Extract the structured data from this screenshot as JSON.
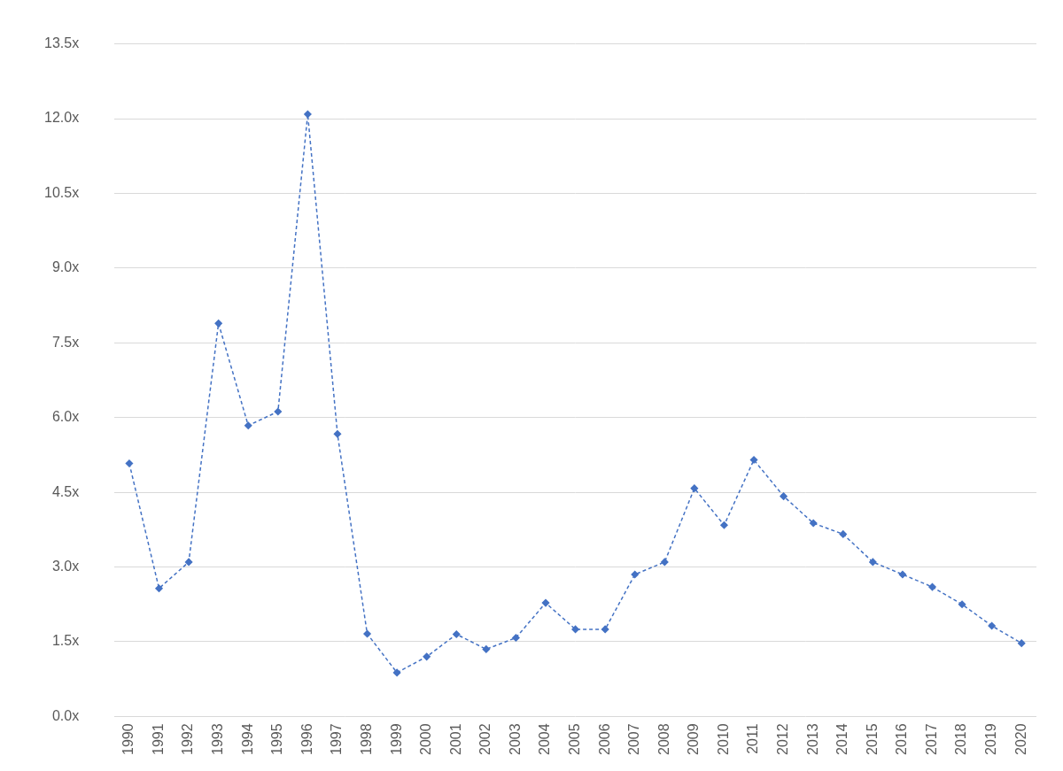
{
  "chart_data": {
    "type": "line",
    "categories": [
      "1990",
      "1991",
      "1992",
      "1993",
      "1994",
      "1995",
      "1996",
      "1997",
      "1998",
      "1999",
      "2000",
      "2001",
      "2002",
      "2003",
      "2004",
      "2005",
      "2006",
      "2007",
      "2008",
      "2009",
      "2010",
      "2011",
      "2012",
      "2013",
      "2014",
      "2015",
      "2016",
      "2017",
      "2018",
      "2019",
      "2020"
    ],
    "values": [
      5.08,
      2.57,
      3.1,
      7.89,
      5.84,
      6.12,
      12.09,
      5.67,
      1.66,
      0.88,
      1.2,
      1.65,
      1.35,
      1.58,
      2.28,
      1.75,
      1.75,
      2.85,
      3.1,
      4.58,
      3.84,
      5.15,
      4.42,
      3.88,
      3.66,
      3.1,
      2.85,
      2.6,
      2.25,
      1.82,
      1.47
    ],
    "color": "#4472c4",
    "marker": "diamond",
    "line_style": "dashed",
    "ylim": [
      0,
      13.5
    ],
    "yticks": [
      {
        "value": 0,
        "label": "0.0x"
      },
      {
        "value": 1.5,
        "label": "1.5x"
      },
      {
        "value": 3,
        "label": "3.0x"
      },
      {
        "value": 4.5,
        "label": "4.5x"
      },
      {
        "value": 6,
        "label": "6.0x"
      },
      {
        "value": 7.5,
        "label": "7.5x"
      },
      {
        "value": 9,
        "label": "9.0x"
      },
      {
        "value": 10.5,
        "label": "10.5x"
      },
      {
        "value": 12,
        "label": "12.0x"
      },
      {
        "value": 13.5,
        "label": "13.5x"
      }
    ],
    "grid": "y"
  }
}
